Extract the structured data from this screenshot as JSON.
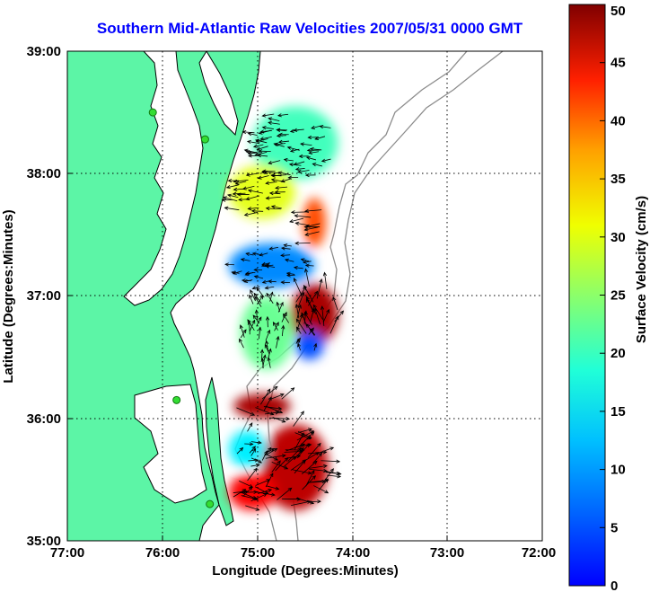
{
  "title": "Southern Mid-Atlantic Raw Velocities 2007/05/31 0000 GMT",
  "x_axis": {
    "label": "Longitude (Degrees:Minutes)",
    "ticks": [
      "77:00",
      "76:00",
      "75:00",
      "74:00",
      "73:00",
      "72:00"
    ]
  },
  "y_axis": {
    "label": "Latitude (Degrees:Minutes)",
    "ticks": [
      "39:00",
      "38:00",
      "37:00",
      "36:00",
      "35:00"
    ]
  },
  "colorbar": {
    "label": "Surface Velocity (cm/s)",
    "ticks": [
      "50",
      "45",
      "40",
      "35",
      "30",
      "25",
      "20",
      "15",
      "10",
      "5",
      "0"
    ],
    "min": 0,
    "max": 50,
    "colormap": "jet"
  },
  "colors": {
    "land": "#5cf5a6",
    "water": "#ffffff",
    "coastline": "#000000",
    "bathymetry": "#8c8c8c",
    "title": "#0000ff",
    "station": "#33dd33"
  },
  "map_extent": {
    "lon_west": -77.0,
    "lon_east": -72.0,
    "lat_south": 35.0,
    "lat_north": 39.0
  },
  "stations": [
    {
      "lon": -76.1,
      "lat": 38.5
    },
    {
      "lon": -75.55,
      "lat": 38.28
    },
    {
      "lon": -75.85,
      "lat": 36.15
    },
    {
      "lon": -75.5,
      "lat": 35.3
    }
  ],
  "velocity_patches": [
    {
      "lon": -74.6,
      "lat": 38.25,
      "rx": 0.45,
      "ry": 0.3,
      "speed": 22
    },
    {
      "lon": -74.95,
      "lat": 37.85,
      "rx": 0.35,
      "ry": 0.22,
      "speed": 30
    },
    {
      "lon": -74.4,
      "lat": 37.6,
      "rx": 0.12,
      "ry": 0.2,
      "speed": 40
    },
    {
      "lon": -74.85,
      "lat": 37.25,
      "rx": 0.45,
      "ry": 0.18,
      "speed": 13
    },
    {
      "lon": -74.4,
      "lat": 36.85,
      "rx": 0.25,
      "ry": 0.25,
      "speed": 48
    },
    {
      "lon": -74.9,
      "lat": 36.7,
      "rx": 0.28,
      "ry": 0.3,
      "speed": 24
    },
    {
      "lon": -74.45,
      "lat": 36.6,
      "rx": 0.15,
      "ry": 0.12,
      "speed": 10
    },
    {
      "lon": -74.95,
      "lat": 36.1,
      "rx": 0.3,
      "ry": 0.1,
      "speed": 48
    },
    {
      "lon": -74.6,
      "lat": 35.6,
      "rx": 0.35,
      "ry": 0.35,
      "speed": 47
    },
    {
      "lon": -75.1,
      "lat": 35.75,
      "rx": 0.2,
      "ry": 0.15,
      "speed": 18
    },
    {
      "lon": -75.05,
      "lat": 35.4,
      "rx": 0.25,
      "ry": 0.15,
      "speed": 44
    }
  ]
}
